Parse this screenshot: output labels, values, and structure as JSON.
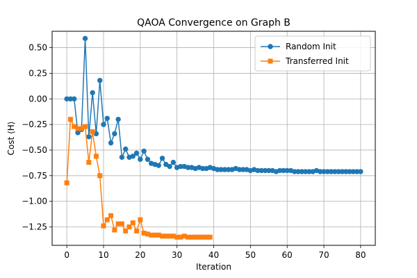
{
  "chart_data": {
    "type": "line",
    "title": "QAOA Convergence on Graph B",
    "xlabel": "Iteration",
    "ylabel": "Cost ⟨H⟩",
    "xlim": [
      -4,
      84
    ],
    "ylim": [
      -1.43,
      0.66
    ],
    "xticks": [
      0,
      10,
      20,
      30,
      40,
      50,
      60,
      70,
      80
    ],
    "yticks": [
      0.5,
      0.25,
      0.0,
      -0.25,
      -0.5,
      -0.75,
      -1.0,
      -1.25
    ],
    "ytick_labels": [
      "0.50",
      "0.25",
      "0.00",
      "−0.25",
      "−0.50",
      "−0.75",
      "−1.00",
      "−1.25"
    ],
    "grid": true,
    "legend_position": "top-right",
    "series": [
      {
        "name": "Random Init",
        "color": "#1f77b4",
        "marker": "circle",
        "x": [
          0,
          1,
          2,
          3,
          4,
          5,
          6,
          7,
          8,
          9,
          10,
          11,
          12,
          13,
          14,
          15,
          16,
          17,
          18,
          19,
          20,
          21,
          22,
          23,
          24,
          25,
          26,
          27,
          28,
          29,
          30,
          31,
          32,
          33,
          34,
          35,
          36,
          37,
          38,
          39,
          40,
          41,
          42,
          43,
          44,
          45,
          46,
          47,
          48,
          49,
          50,
          51,
          52,
          53,
          54,
          55,
          56,
          57,
          58,
          59,
          60,
          61,
          62,
          63,
          64,
          65,
          66,
          67,
          68,
          69,
          70,
          71,
          72,
          73,
          74,
          75,
          76,
          77,
          78,
          79,
          80
        ],
        "y": [
          0.0,
          0.0,
          0.0,
          -0.33,
          -0.3,
          0.59,
          -0.37,
          0.06,
          -0.34,
          0.18,
          -0.25,
          -0.19,
          -0.43,
          -0.34,
          -0.2,
          -0.57,
          -0.49,
          -0.57,
          -0.56,
          -0.53,
          -0.59,
          -0.51,
          -0.59,
          -0.63,
          -0.64,
          -0.65,
          -0.58,
          -0.64,
          -0.66,
          -0.62,
          -0.67,
          -0.66,
          -0.66,
          -0.67,
          -0.67,
          -0.68,
          -0.67,
          -0.68,
          -0.68,
          -0.67,
          -0.68,
          -0.69,
          -0.69,
          -0.69,
          -0.69,
          -0.69,
          -0.68,
          -0.69,
          -0.69,
          -0.69,
          -0.7,
          -0.69,
          -0.7,
          -0.7,
          -0.7,
          -0.7,
          -0.7,
          -0.71,
          -0.7,
          -0.7,
          -0.7,
          -0.7,
          -0.71,
          -0.71,
          -0.71,
          -0.71,
          -0.71,
          -0.71,
          -0.7,
          -0.71,
          -0.71,
          -0.71,
          -0.71,
          -0.71,
          -0.71,
          -0.71,
          -0.71,
          -0.71,
          -0.71,
          -0.71,
          -0.71
        ]
      },
      {
        "name": "Transferred Init",
        "color": "#ff7f0e",
        "marker": "square",
        "x": [
          0,
          1,
          2,
          3,
          4,
          5,
          6,
          7,
          8,
          9,
          10,
          11,
          12,
          13,
          14,
          15,
          16,
          17,
          18,
          19,
          20,
          21,
          22,
          23,
          24,
          25,
          26,
          27,
          28,
          29,
          30,
          31,
          32,
          33,
          34,
          35,
          36,
          37,
          38,
          39
        ],
        "y": [
          -0.82,
          -0.2,
          -0.27,
          -0.29,
          -0.29,
          -0.27,
          -0.62,
          -0.32,
          -0.56,
          -0.75,
          -1.24,
          -1.18,
          -1.14,
          -1.28,
          -1.22,
          -1.22,
          -1.29,
          -1.25,
          -1.21,
          -1.29,
          -1.18,
          -1.31,
          -1.32,
          -1.33,
          -1.33,
          -1.33,
          -1.34,
          -1.34,
          -1.34,
          -1.34,
          -1.35,
          -1.35,
          -1.34,
          -1.35,
          -1.35,
          -1.35,
          -1.35,
          -1.35,
          -1.35,
          -1.35
        ]
      }
    ]
  }
}
